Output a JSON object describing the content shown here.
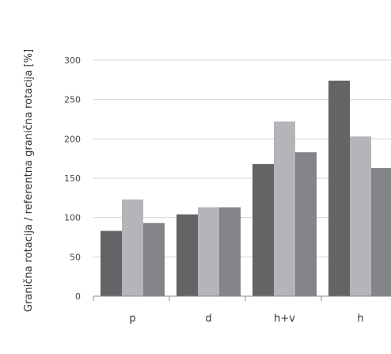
{
  "chart_data": {
    "type": "bar",
    "categories": [
      "p",
      "d",
      "h+v",
      "h"
    ],
    "series": [
      {
        "color": "#646466",
        "values": [
          83,
          104,
          168,
          274
        ]
      },
      {
        "color": "#b4b5b8",
        "values": [
          123,
          113,
          222,
          203
        ]
      },
      {
        "color": "#838487",
        "values": [
          93,
          113,
          183,
          163
        ]
      }
    ],
    "xlabel": "",
    "ylabel": "Granična rotacija / referentna granična rotacija [%]",
    "ylim": [
      0,
      300
    ],
    "yticks": [
      0,
      50,
      100,
      150,
      200,
      250,
      300
    ],
    "grid": true,
    "legend": "none"
  }
}
